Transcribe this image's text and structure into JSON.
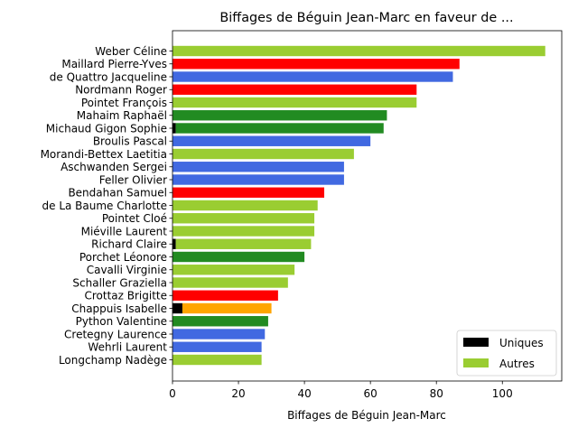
{
  "chart_data": {
    "type": "bar",
    "orientation": "horizontal",
    "title": "Biffages de Béguin Jean-Marc en faveur de ...",
    "xlabel": "Biffages de Béguin Jean-Marc",
    "ylabel": "",
    "xlim": [
      0,
      118
    ],
    "xticks": [
      0,
      20,
      40,
      60,
      80,
      100
    ],
    "grid": false,
    "legend_position": "lower-right",
    "legend": [
      {
        "label": "Uniques",
        "color": "#000000"
      },
      {
        "label": "Autres",
        "color": "#9acd32"
      }
    ],
    "categories": [
      "Weber Céline",
      "Maillard Pierre-Yves",
      "de Quattro Jacqueline",
      "Nordmann Roger",
      "Pointet François",
      "Mahaim Raphaël",
      "Michaud Gigon Sophie",
      "Broulis Pascal",
      "Morandi-Bettex Laetitia",
      "Aschwanden Sergei",
      "Feller Olivier",
      "Bendahan Samuel",
      "de La Baume Charlotte",
      "Pointet Cloé",
      "Miéville Laurent",
      "Richard Claire",
      "Porchet Léonore",
      "Cavalli Virginie",
      "Schaller Graziella",
      "Crottaz Brigitte",
      "Chappuis Isabelle",
      "Python Valentine",
      "Cretegny Laurence",
      "Wehrli Laurent",
      "Longchamp Nadège"
    ],
    "series": [
      {
        "name": "Uniques",
        "values": [
          0,
          0,
          0,
          0,
          0,
          0,
          1,
          0,
          0,
          0,
          0,
          0,
          0,
          0,
          0,
          1,
          0,
          0,
          0,
          0,
          3,
          0,
          0,
          0,
          0
        ]
      },
      {
        "name": "Autres",
        "values": [
          113,
          87,
          85,
          74,
          74,
          65,
          63,
          60,
          55,
          52,
          52,
          46,
          44,
          43,
          43,
          41,
          40,
          37,
          35,
          32,
          27,
          29,
          28,
          27,
          27
        ]
      }
    ],
    "bar_colors": [
      "#9acd32",
      "#ff0000",
      "#4169e1",
      "#ff0000",
      "#9acd32",
      "#228b22",
      "#228b22",
      "#4169e1",
      "#9acd32",
      "#4169e1",
      "#4169e1",
      "#ff0000",
      "#9acd32",
      "#9acd32",
      "#9acd32",
      "#9acd32",
      "#228b22",
      "#9acd32",
      "#9acd32",
      "#ff0000",
      "#ffa500",
      "#228b22",
      "#4169e1",
      "#4169e1",
      "#9acd32"
    ]
  }
}
